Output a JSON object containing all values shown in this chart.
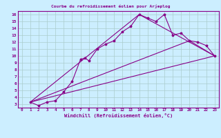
{
  "title": "Courbe du refroidissement éolien pour Arjeplog",
  "xlabel": "Windchill (Refroidissement éolien,°C)",
  "background_color": "#cceeff",
  "line_color": "#880088",
  "grid_color": "#aacccc",
  "xlim": [
    -0.5,
    23.5
  ],
  "ylim": [
    2.5,
    16.5
  ],
  "xticks": [
    0,
    1,
    2,
    3,
    4,
    5,
    6,
    7,
    8,
    9,
    10,
    11,
    12,
    13,
    14,
    15,
    16,
    17,
    18,
    19,
    20,
    21,
    22,
    23
  ],
  "yticks": [
    3,
    4,
    5,
    6,
    7,
    8,
    9,
    10,
    11,
    12,
    13,
    14,
    15,
    16
  ],
  "series": [
    [
      1,
      3.3
    ],
    [
      2,
      2.8
    ],
    [
      3,
      3.3
    ],
    [
      4,
      3.5
    ],
    [
      5,
      4.8
    ],
    [
      6,
      6.3
    ],
    [
      7,
      9.5
    ],
    [
      7.5,
      9.7
    ],
    [
      8,
      9.3
    ],
    [
      9,
      11.0
    ],
    [
      10,
      11.7
    ],
    [
      11,
      12.2
    ],
    [
      12,
      13.5
    ],
    [
      13,
      14.3
    ],
    [
      14,
      16.0
    ],
    [
      15,
      15.5
    ],
    [
      16,
      15.0
    ],
    [
      17,
      16.0
    ],
    [
      18,
      13.0
    ],
    [
      19,
      13.3
    ],
    [
      20,
      12.2
    ],
    [
      21,
      12.0
    ],
    [
      22,
      11.5
    ],
    [
      23,
      10.0
    ]
  ],
  "line_straight": [
    [
      1,
      3.3
    ],
    [
      23,
      10.0
    ]
  ],
  "line_peak": [
    [
      1,
      3.3
    ],
    [
      14,
      16.0
    ],
    [
      23,
      10.0
    ]
  ],
  "line_mid": [
    [
      1,
      3.3
    ],
    [
      20,
      12.2
    ],
    [
      23,
      10.0
    ]
  ]
}
